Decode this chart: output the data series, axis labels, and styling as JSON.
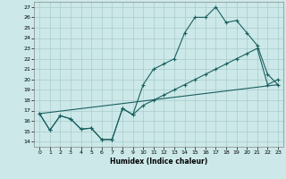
{
  "xlabel": "Humidex (Indice chaleur)",
  "bg_color": "#cce8e8",
  "grid_color": "#aacccc",
  "line_color": "#1a6060",
  "xlim": [
    -0.5,
    23.5
  ],
  "ylim": [
    13.5,
    27.5
  ],
  "xticks": [
    0,
    1,
    2,
    3,
    4,
    5,
    6,
    7,
    8,
    9,
    10,
    11,
    12,
    13,
    14,
    15,
    16,
    17,
    18,
    19,
    20,
    21,
    22,
    23
  ],
  "yticks": [
    14,
    15,
    16,
    17,
    18,
    19,
    20,
    21,
    22,
    23,
    24,
    25,
    26,
    27
  ],
  "line1_x": [
    0,
    1,
    2,
    3,
    4,
    5,
    6,
    7,
    8,
    9,
    10,
    11,
    12,
    13,
    14,
    15,
    16,
    17,
    18,
    19,
    20,
    21,
    22,
    23
  ],
  "line1_y": [
    16.7,
    15.1,
    16.5,
    16.2,
    15.2,
    15.3,
    14.2,
    14.2,
    17.2,
    16.6,
    19.5,
    21.0,
    21.5,
    22.0,
    24.5,
    26.0,
    26.0,
    27.0,
    25.5,
    25.7,
    24.5,
    23.3,
    20.5,
    19.5
  ],
  "line2_x": [
    0,
    1,
    2,
    3,
    4,
    5,
    6,
    7,
    8,
    9,
    10,
    11,
    12,
    13,
    14,
    15,
    16,
    17,
    18,
    19,
    20,
    21,
    22,
    23
  ],
  "line2_y": [
    16.7,
    15.1,
    16.5,
    16.2,
    15.2,
    15.3,
    14.2,
    14.2,
    17.2,
    16.6,
    17.5,
    18.0,
    18.5,
    19.0,
    19.5,
    20.0,
    20.5,
    21.0,
    21.5,
    22.0,
    22.5,
    23.0,
    19.5,
    20.0
  ],
  "line3_x": [
    0,
    23
  ],
  "line3_y": [
    16.7,
    19.5
  ]
}
